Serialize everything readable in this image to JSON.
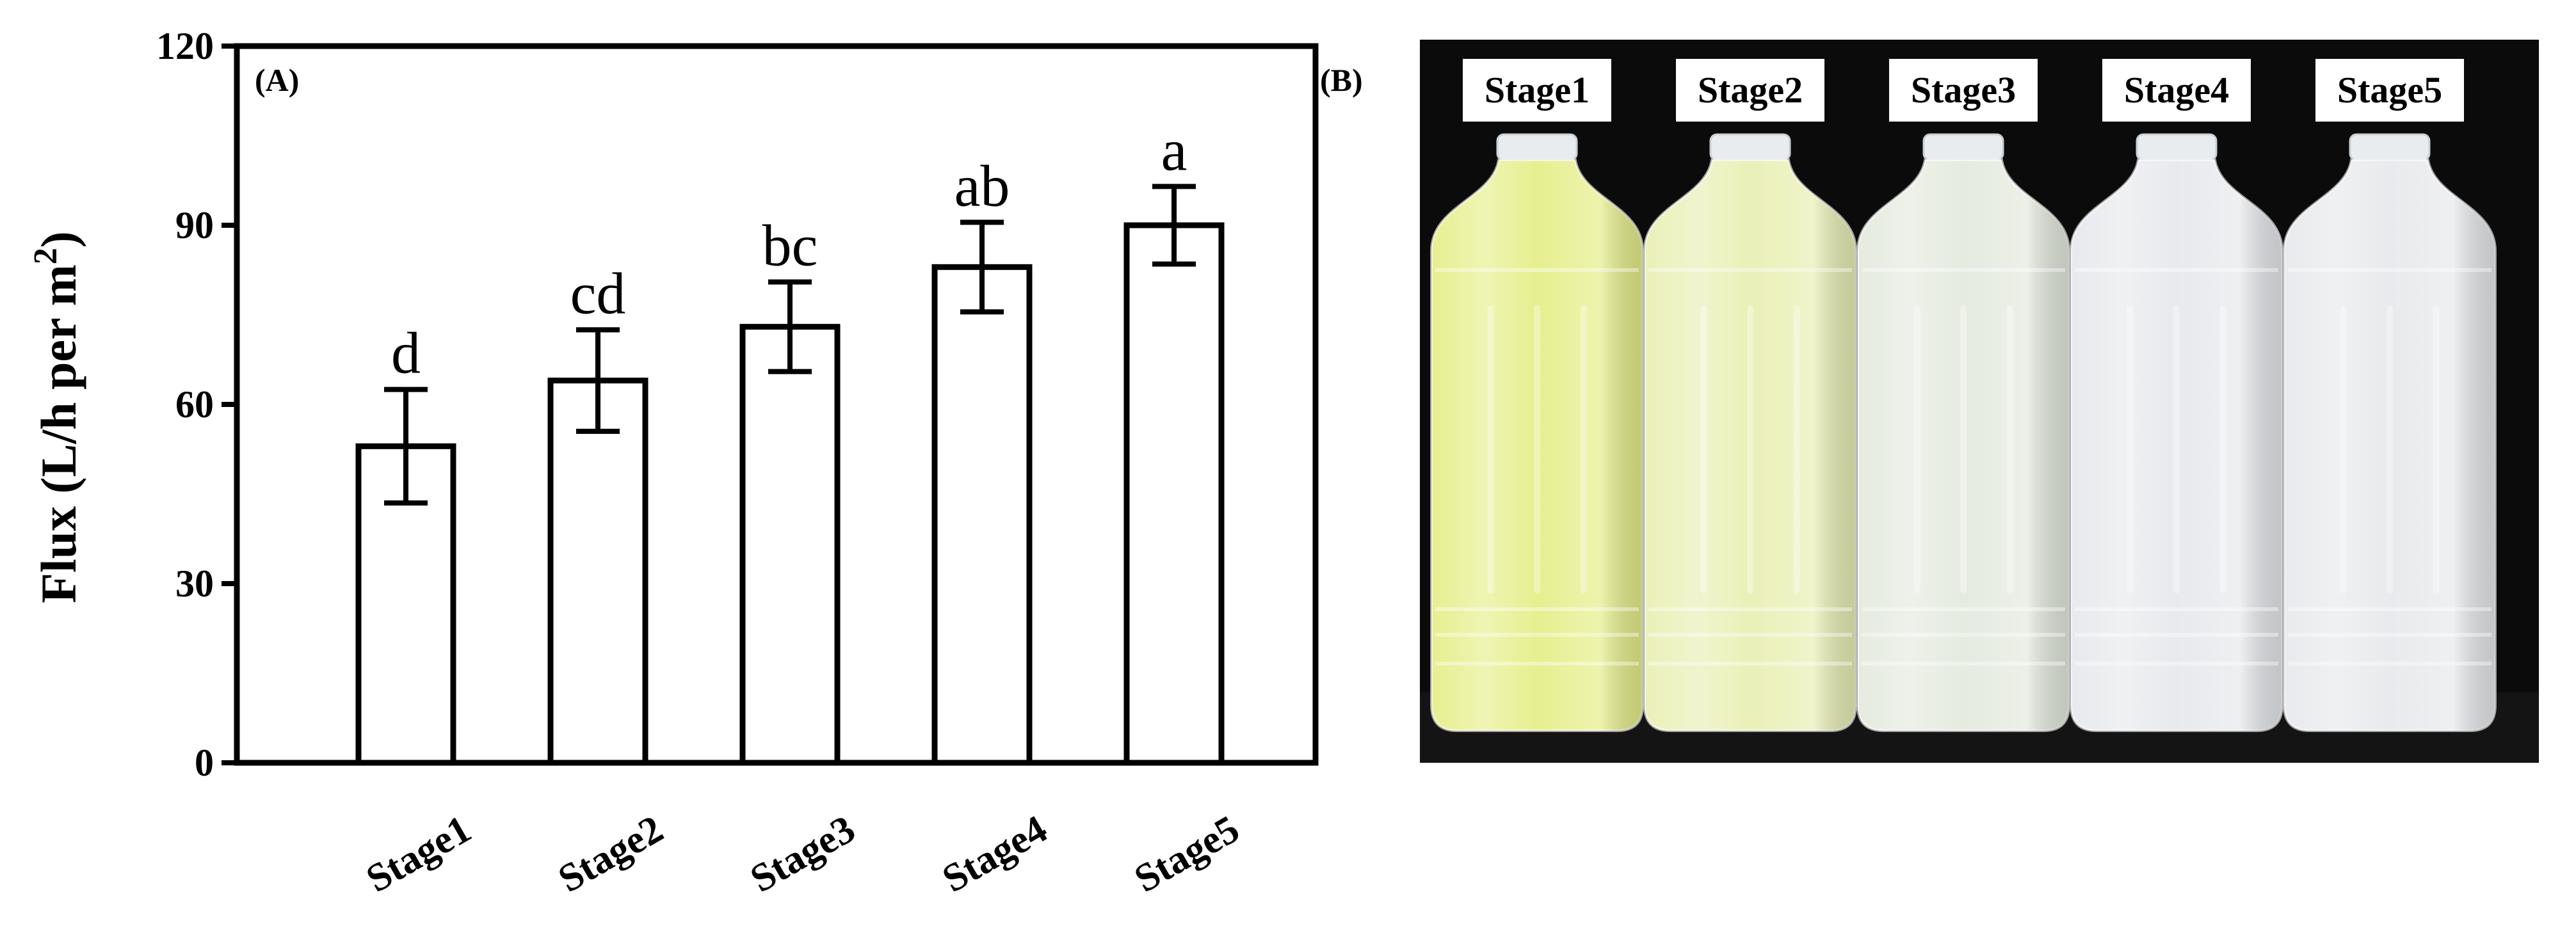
{
  "chart_data": {
    "type": "bar",
    "panel_label": "(A)",
    "ylabel": "Flux (L/h per m",
    "ylabel_sup": "2",
    "ylabel_close": ")",
    "categories": [
      "Stage1",
      "Stage2",
      "Stage3",
      "Stage4",
      "Stage5"
    ],
    "values": [
      53,
      64,
      73,
      83,
      90
    ],
    "errors": [
      9.5,
      8.5,
      7.5,
      7.5,
      6.5
    ],
    "significance": [
      "d",
      "cd",
      "bc",
      "ab",
      "a"
    ],
    "ylim": [
      0,
      120
    ],
    "yticks": [
      0,
      30,
      60,
      90,
      120
    ],
    "bar_color": "#ffffff",
    "edge_color": "#000000"
  },
  "photo": {
    "panel_label": "(B)",
    "labels": [
      "Stage1",
      "Stage2",
      "Stage3",
      "Stage4",
      "Stage5"
    ],
    "bottle_tints": [
      "#e6ee8a",
      "#e9efb4",
      "#e4eade",
      "#e6e9ec",
      "#e7e9ec"
    ],
    "background_color": "#0b0b0b"
  }
}
